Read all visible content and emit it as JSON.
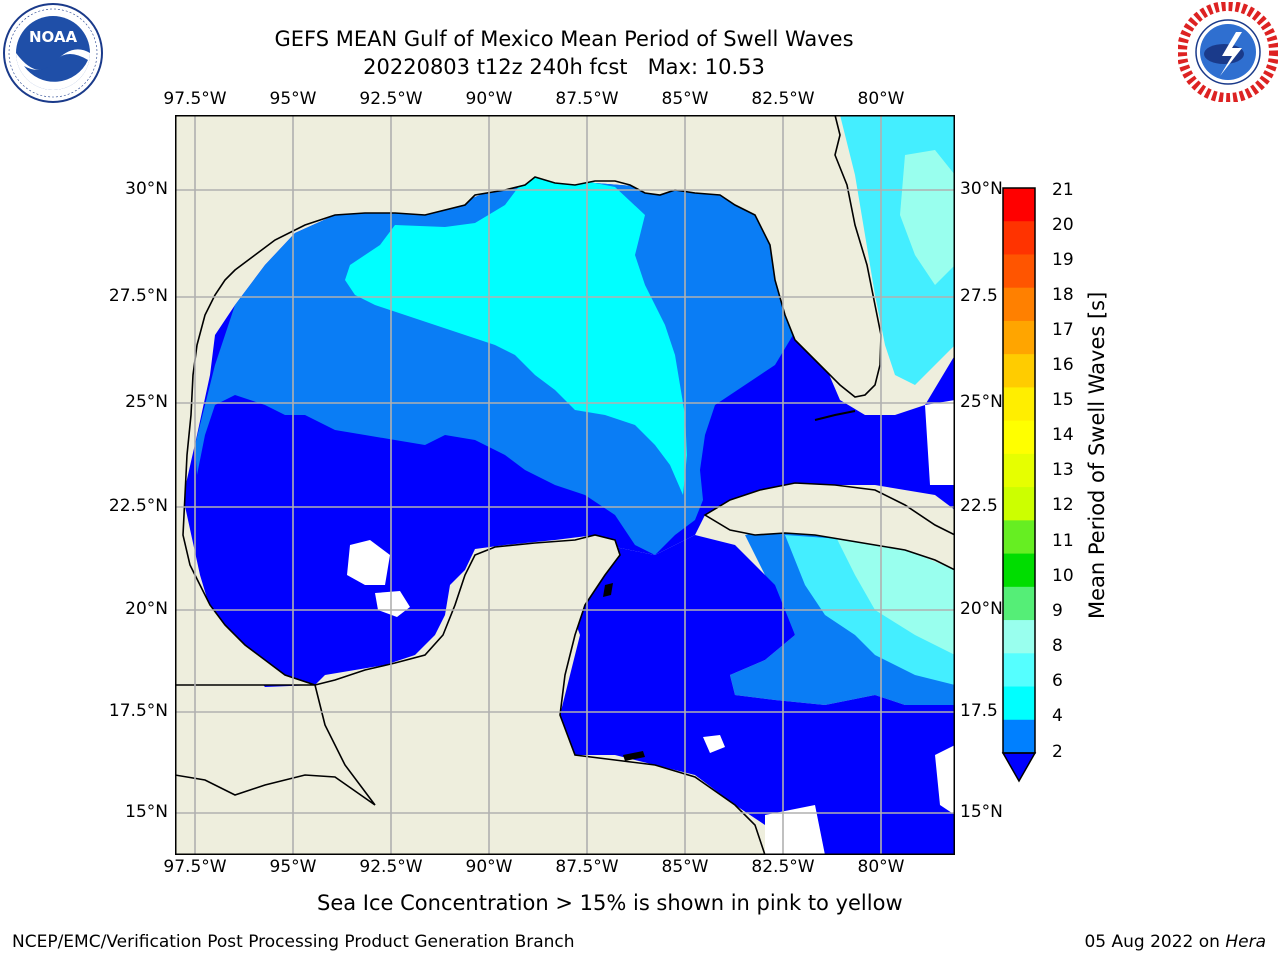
{
  "header": {
    "title_line1": "GEFS MEAN Gulf of Mexico Mean Period of Swell Waves",
    "title_line2": "20220803 t12z 240h fcst   Max: 10.53"
  },
  "logos": {
    "left": {
      "text": "NOAA",
      "ring_text": "NATIONAL OCEANIC AND ATMOSPHERIC ADMINISTRATION · U.S. DEPARTMENT OF COMMERCE"
    },
    "right": {
      "ring_text": "NATIONAL WEATHER SERVICE"
    }
  },
  "map": {
    "lon_ticks": [
      "97.5°W",
      "95°W",
      "92.5°W",
      "90°W",
      "87.5°W",
      "85°W",
      "82.5°W",
      "80°W"
    ],
    "lat_ticks_left": [
      "30°N",
      "27.5°N",
      "25°N",
      "22.5°N",
      "20°N",
      "17.5°N",
      "15°N"
    ],
    "lat_ticks_right": [
      "30°N",
      "27.5",
      "25°N",
      "22.5",
      "20°N",
      "17.5",
      "15°N"
    ],
    "colors": {
      "land": "#eeeedd",
      "grid": "#b0b0b0",
      "coast": "#000000"
    }
  },
  "colorbar": {
    "label": "Mean Period of Swell Waves [s]",
    "ticks": [
      "21",
      "20",
      "19",
      "18",
      "17",
      "16",
      "15",
      "14",
      "13",
      "12",
      "11",
      "10",
      "9",
      "8",
      "6",
      "4",
      "2"
    ],
    "colors": [
      "#ff0000",
      "#ff3300",
      "#ff5500",
      "#ff8000",
      "#ffa500",
      "#ffcc00",
      "#ffee00",
      "#ffff00",
      "#e6ff00",
      "#ccff00",
      "#66ee22",
      "#00dd00",
      "#55ee77",
      "#99ffee",
      "#55ffff",
      "#00ffff",
      "#0080ff",
      "#0000ff"
    ]
  },
  "caption": "Sea Ice Concentration > 15% is shown in pink to yellow",
  "footer": {
    "left": "NCEP/EMC/Verification Post Processing Product Generation Branch",
    "right_date": "05 Aug 2022 on ",
    "right_machine": "Hera"
  }
}
